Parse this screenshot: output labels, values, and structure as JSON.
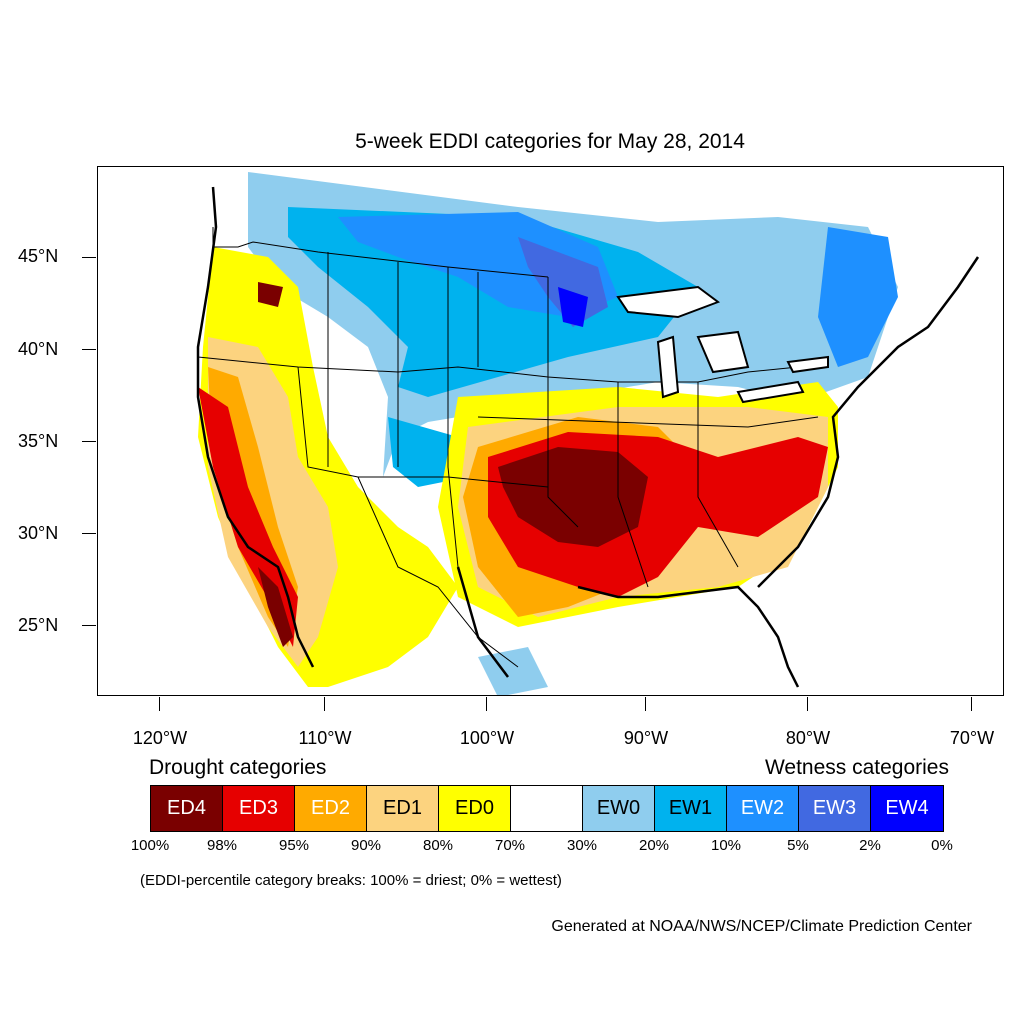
{
  "title": "5-week EDDI categories for May 28, 2014",
  "lat_labels": [
    "45°N",
    "40°N",
    "35°N",
    "30°N",
    "25°N"
  ],
  "lon_labels": [
    "120°W",
    "110°W",
    "100°W",
    "90°W",
    "80°W",
    "70°W"
  ],
  "drought_heading": "Drought categories",
  "wetness_heading": "Wetness categories",
  "legend": [
    {
      "label": "ED4",
      "color": "#7a0000",
      "text_color": "#ffffff"
    },
    {
      "label": "ED3",
      "color": "#e60000",
      "text_color": "#ffffff"
    },
    {
      "label": "ED2",
      "color": "#ffaa00",
      "text_color": "#ffffff"
    },
    {
      "label": "ED1",
      "color": "#fcd37f",
      "text_color": "#000000"
    },
    {
      "label": "ED0",
      "color": "#ffff00",
      "text_color": "#000000"
    },
    {
      "label": "",
      "color": "#ffffff",
      "text_color": "#000000"
    },
    {
      "label": "EW0",
      "color": "#8fcdee",
      "text_color": "#000000"
    },
    {
      "label": "EW1",
      "color": "#00b2ee",
      "text_color": "#000000"
    },
    {
      "label": "EW2",
      "color": "#1e90ff",
      "text_color": "#ffffff"
    },
    {
      "label": "EW3",
      "color": "#4169e1",
      "text_color": "#ffffff"
    },
    {
      "label": "EW4",
      "color": "#0000ff",
      "text_color": "#ffffff"
    }
  ],
  "percent_breaks": [
    "100%",
    "98%",
    "95%",
    "90%",
    "80%",
    "70%",
    "30%",
    "20%",
    "10%",
    "5%",
    "2%",
    "0%"
  ],
  "note": "(EDDI-percentile category breaks: 100% = driest; 0% = wettest)",
  "credit": "Generated at NOAA/NWS/NCEP/Climate Prediction Center"
}
